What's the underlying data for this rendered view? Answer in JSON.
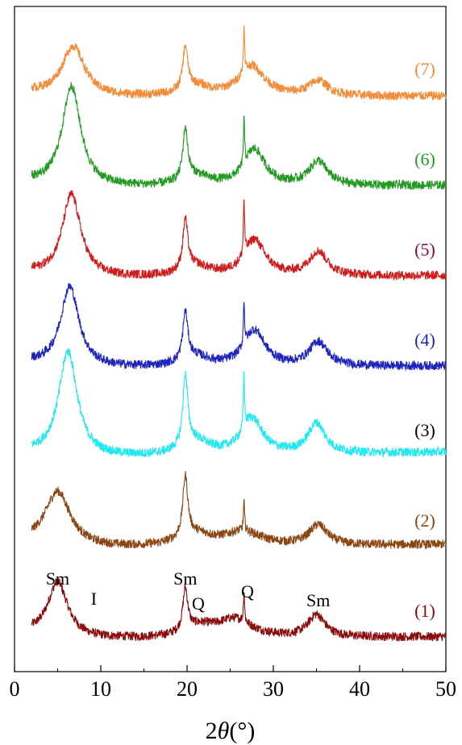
{
  "chart_data": {
    "type": "line",
    "title": "",
    "xlabel_prefix": "2",
    "xlabel_symbol": "θ",
    "xlabel_unit": "(°)",
    "ylabel": "",
    "xlim": [
      0,
      50
    ],
    "x_ticks": [
      0,
      10,
      20,
      30,
      40,
      50
    ],
    "x_tick_labels": [
      "0",
      "10",
      "20",
      "30",
      "40",
      "50"
    ],
    "y_ticks_visible": false,
    "grid": false,
    "legend": "none",
    "x_start": 2,
    "x_end": 50,
    "series": [
      {
        "name": "(1)",
        "color": "#8b0a0a",
        "offset": 0,
        "peaks": [
          {
            "x": 5.0,
            "h": 0.55,
            "w": 1.4
          },
          {
            "x": 19.8,
            "h": 0.42,
            "w": 0.35
          },
          {
            "x": 21.5,
            "h": 0.1,
            "w": 2.0
          },
          {
            "x": 26.6,
            "h": 0.3,
            "w": 0.08
          },
          {
            "x": 25.5,
            "h": 0.18,
            "w": 2.5
          },
          {
            "x": 35.0,
            "h": 0.22,
            "w": 1.2
          }
        ],
        "baseline_start": 0.05,
        "baseline_end": 0.08
      },
      {
        "name": "(2)",
        "color": "#8b4513",
        "offset": 1,
        "peaks": [
          {
            "x": 5.0,
            "h": 0.55,
            "w": 1.8
          },
          {
            "x": 19.8,
            "h": 0.6,
            "w": 0.35
          },
          {
            "x": 21.0,
            "h": 0.12,
            "w": 2.5
          },
          {
            "x": 26.6,
            "h": 0.28,
            "w": 0.08
          },
          {
            "x": 26.5,
            "h": 0.14,
            "w": 2.5
          },
          {
            "x": 35.2,
            "h": 0.2,
            "w": 1.3
          }
        ],
        "baseline_start": 0.05,
        "baseline_end": 0.1
      },
      {
        "name": "(3)",
        "color": "#1de9f2",
        "offset": 2,
        "peaks": [
          {
            "x": 6.2,
            "h": 1.05,
            "w": 1.3
          },
          {
            "x": 19.8,
            "h": 0.7,
            "w": 0.35
          },
          {
            "x": 21.0,
            "h": 0.14,
            "w": 2.0
          },
          {
            "x": 26.6,
            "h": 0.55,
            "w": 0.08
          },
          {
            "x": 27.5,
            "h": 0.36,
            "w": 1.5
          },
          {
            "x": 35.0,
            "h": 0.3,
            "w": 1.2
          }
        ],
        "baseline_start": 0.05,
        "baseline_end": 0.12
      },
      {
        "name": "(4)",
        "color": "#1f24bf",
        "offset": 3,
        "peaks": [
          {
            "x": 6.4,
            "h": 0.8,
            "w": 1.3
          },
          {
            "x": 19.8,
            "h": 0.48,
            "w": 0.35
          },
          {
            "x": 21.0,
            "h": 0.1,
            "w": 2.0
          },
          {
            "x": 26.6,
            "h": 0.45,
            "w": 0.08
          },
          {
            "x": 27.8,
            "h": 0.36,
            "w": 1.5
          },
          {
            "x": 35.2,
            "h": 0.24,
            "w": 1.3
          }
        ],
        "baseline_start": 0.05,
        "baseline_end": 0.08
      },
      {
        "name": "(5)",
        "color": "#d11a1a",
        "offset": 4,
        "peaks": [
          {
            "x": 6.6,
            "h": 0.82,
            "w": 1.3
          },
          {
            "x": 19.8,
            "h": 0.5,
            "w": 0.35
          },
          {
            "x": 21.0,
            "h": 0.1,
            "w": 2.0
          },
          {
            "x": 26.6,
            "h": 0.55,
            "w": 0.08
          },
          {
            "x": 27.8,
            "h": 0.36,
            "w": 1.5
          },
          {
            "x": 35.2,
            "h": 0.24,
            "w": 1.3
          }
        ],
        "baseline_start": 0.05,
        "baseline_end": 0.08
      },
      {
        "name": "(6)",
        "color": "#219a21",
        "offset": 5,
        "peaks": [
          {
            "x": 6.6,
            "h": 1.0,
            "w": 1.3
          },
          {
            "x": 19.8,
            "h": 0.5,
            "w": 0.35
          },
          {
            "x": 21.0,
            "h": 0.1,
            "w": 2.0
          },
          {
            "x": 26.6,
            "h": 0.45,
            "w": 0.08
          },
          {
            "x": 27.8,
            "h": 0.36,
            "w": 1.5
          },
          {
            "x": 35.2,
            "h": 0.24,
            "w": 1.3
          }
        ],
        "baseline_start": 0.05,
        "baseline_end": 0.08
      },
      {
        "name": "(7)",
        "color": "#f28c36",
        "offset": 6,
        "peaks": [
          {
            "x": 6.8,
            "h": 0.5,
            "w": 1.6
          },
          {
            "x": 19.8,
            "h": 0.42,
            "w": 0.35
          },
          {
            "x": 21.0,
            "h": 0.1,
            "w": 2.0
          },
          {
            "x": 26.6,
            "h": 0.45,
            "w": 0.08
          },
          {
            "x": 27.5,
            "h": 0.3,
            "w": 1.8
          },
          {
            "x": 35.2,
            "h": 0.15,
            "w": 1.3
          }
        ],
        "baseline_start": 0.05,
        "baseline_end": 0.07
      }
    ],
    "series_label_colors": {
      "(1)": "#8b0a0a",
      "(2)": "#8b4513",
      "(3)": "#000000",
      "(4)": "#1f24bf",
      "(5)": "#8b0a3c",
      "(6)": "#219a21",
      "(7)": "#f28c36"
    },
    "annotations": [
      {
        "text": "Sm",
        "x": 5.0,
        "series": "(1)"
      },
      {
        "text": "I",
        "x": 9.2,
        "series": "(1)"
      },
      {
        "text": "Sm",
        "x": 19.8,
        "series": "(1)"
      },
      {
        "text": "Q",
        "x": 21.3,
        "series": "(1)"
      },
      {
        "text": "Q",
        "x": 27.0,
        "series": "(1)"
      },
      {
        "text": "Sm",
        "x": 35.2,
        "series": "(1)"
      }
    ]
  }
}
